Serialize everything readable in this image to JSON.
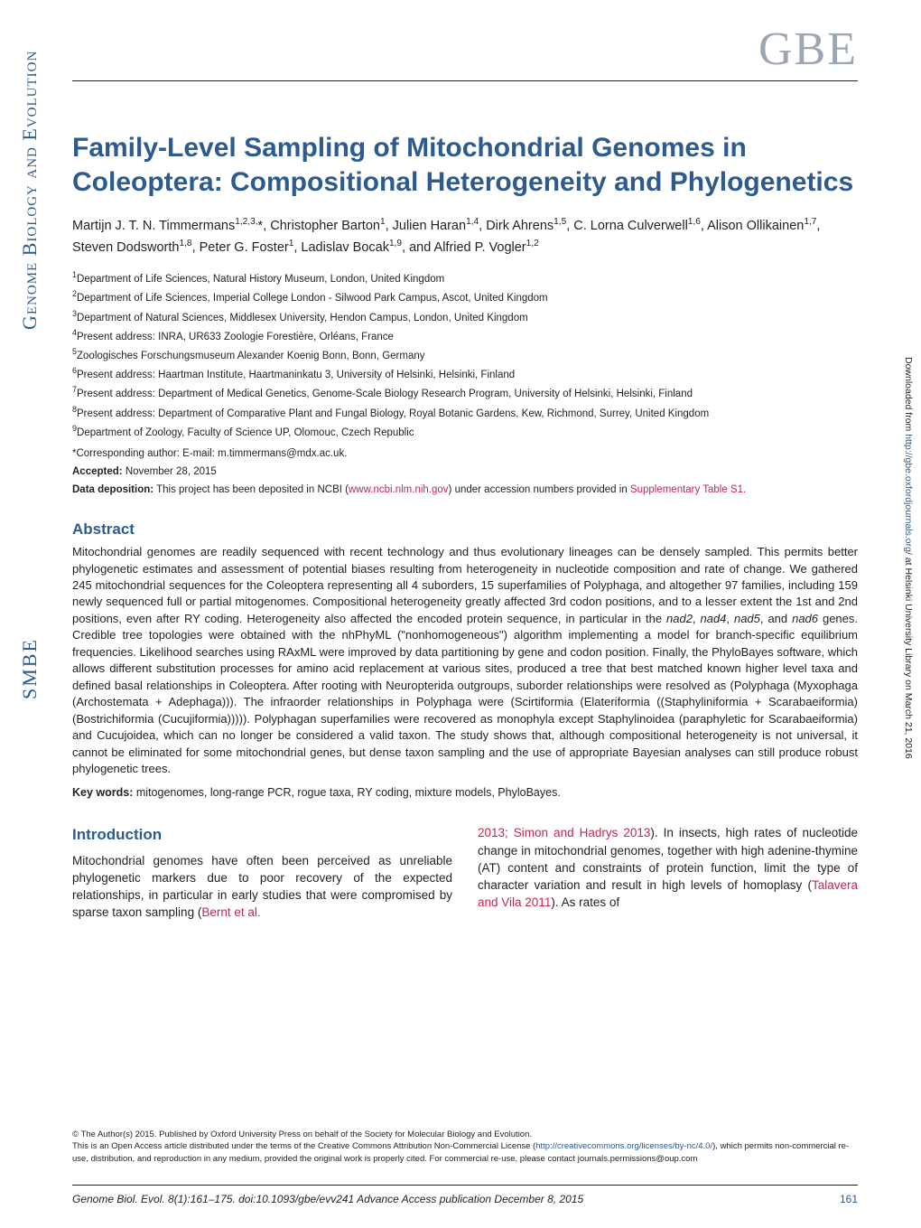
{
  "journal": {
    "logo": "GBE",
    "sidebar_full": "Genome Biology and Evolution",
    "sidebar_society": "SMBE"
  },
  "title": "Family-Level Sampling of Mitochondrial Genomes in Coleoptera: Compositional Heterogeneity and Phylogenetics",
  "authors_html": "Martijn J. T. N. Timmermans<sup>1,2,3,</sup>*, Christopher Barton<sup>1</sup>, Julien Haran<sup>1,4</sup>, Dirk Ahrens<sup>1,5</sup>, C. Lorna Culverwell<sup>1,6</sup>, Alison Ollikainen<sup>1,7</sup>, Steven Dodsworth<sup>1,8</sup>, Peter G. Foster<sup>1</sup>, Ladislav Bocak<sup>1,9</sup>, and Alfried P. Vogler<sup>1,2</sup>",
  "affiliations": [
    "Department of Life Sciences, Natural History Museum, London, United Kingdom",
    "Department of Life Sciences, Imperial College London - Silwood Park Campus, Ascot, United Kingdom",
    "Department of Natural Sciences, Middlesex University, Hendon Campus, London, United Kingdom",
    "Present address: INRA, UR633 Zoologie Forestière, Orléans, France",
    "Zoologisches Forschungsmuseum Alexander Koenig Bonn, Bonn, Germany",
    "Present address: Haartman Institute, Haartmaninkatu 3, University of Helsinki, Helsinki, Finland",
    "Present address: Department of Medical Genetics, Genome-Scale Biology Research Program, University of Helsinki, Helsinki, Finland",
    "Present address: Department of Comparative Plant and Fungal Biology, Royal Botanic Gardens, Kew, Richmond, Surrey, United Kingdom",
    "Department of Zoology, Faculty of Science UP, Olomouc, Czech Republic"
  ],
  "corresponding": "*Corresponding author: E-mail: m.timmermans@mdx.ac.uk.",
  "accepted_label": "Accepted:",
  "accepted_date": "November 28, 2015",
  "deposition_label": "Data deposition:",
  "deposition_text_pre": "This project has been deposited in NCBI (",
  "deposition_link": "www.ncbi.nlm.nih.gov",
  "deposition_text_mid": ") under accession numbers provided in ",
  "deposition_supp": "Supplementary Table S1.",
  "abstract_heading": "Abstract",
  "abstract_body": "Mitochondrial genomes are readily sequenced with recent technology and thus evolutionary lineages can be densely sampled. This permits better phylogenetic estimates and assessment of potential biases resulting from heterogeneity in nucleotide composition and rate of change. We gathered 245 mitochondrial sequences for the Coleoptera representing all 4 suborders, 15 superfamilies of Polyphaga, and altogether 97 families, including 159 newly sequenced full or partial mitogenomes. Compositional heterogeneity greatly affected 3rd codon positions, and to a lesser extent the 1st and 2nd positions, even after RY coding. Heterogeneity also affected the encoded protein sequence, in particular in the nad2, nad4, nad5, and nad6 genes. Credible tree topologies were obtained with the nhPhyML (\"nonhomogeneous\") algorithm implementing a model for branch-specific equilibrium frequencies. Likelihood searches using RAxML were improved by data partitioning by gene and codon position. Finally, the PhyloBayes software, which allows different substitution processes for amino acid replacement at various sites, produced a tree that best matched known higher level taxa and defined basal relationships in Coleoptera. After rooting with Neuropterida outgroups, suborder relationships were resolved as (Polyphaga (Myxophaga (Archostemata + Adephaga))). The infraorder relationships in Polyphaga were (Scirtiformia (Elateriformia ((Staphyliniformia + Scarabaeiformia) (Bostrichiformia (Cucujiformia))))). Polyphagan superfamilies were recovered as monophyla except Staphylinoidea (paraphyletic for Scarabaeiformia) and Cucujoidea, which can no longer be considered a valid taxon. The study shows that, although compositional heterogeneity is not universal, it cannot be eliminated for some mitochondrial genes, but dense taxon sampling and the use of appropriate Bayesian analyses can still produce robust phylogenetic trees.",
  "keywords_label": "Key words:",
  "keywords": "mitogenomes, long-range PCR, rogue taxa, RY coding, mixture models, PhyloBayes.",
  "intro_heading": "Introduction",
  "intro_col1_pre": "Mitochondrial genomes have often been perceived as unreliable phylogenetic markers due to poor recovery of the expected relationships, in particular in early studies that were compromised by sparse taxon sampling (",
  "intro_col1_link": "Bernt et al.",
  "intro_col2_pre1": "2013",
  "intro_col2_link1": "; Simon and Hadrys 2013",
  "intro_col2_mid": "). In insects, high rates of nucleotide change in mitochondrial genomes, together with high adenine-thymine (AT) content and constraints of protein function, limit the type of character variation and result in high levels of homoplasy (",
  "intro_col2_link2": "Talavera and Vila 2011",
  "intro_col2_post": "). As rates of",
  "license_line1": "© The Author(s) 2015. Published by Oxford University Press on behalf of the Society for Molecular Biology and Evolution.",
  "license_line2_pre": "This is an Open Access article distributed under the terms of the Creative Commons Attribution Non-Commercial License (",
  "license_link": "http://creativecommons.org/licenses/by-nc/4.0/",
  "license_line2_post": "), which permits non-commercial re-use, distribution, and reproduction in any medium, provided the original work is properly cited. For commercial re-use, please contact journals.permissions@oup.com",
  "footer_citation": "Genome Biol. Evol. 8(1):161–175.   doi:10.1093/gbe/evv241   Advance Access publication December 8, 2015",
  "footer_page": "161",
  "download_note_pre": "Downloaded from ",
  "download_note_link": "http://gbe.oxfordjournals.org/",
  "download_note_post": " at Helsinki University Library on March 21, 2016",
  "colors": {
    "brand_blue": "#2d5b8e",
    "logo_gray": "#9ba6b2",
    "link_red": "#c7254e",
    "text": "#231f20"
  }
}
